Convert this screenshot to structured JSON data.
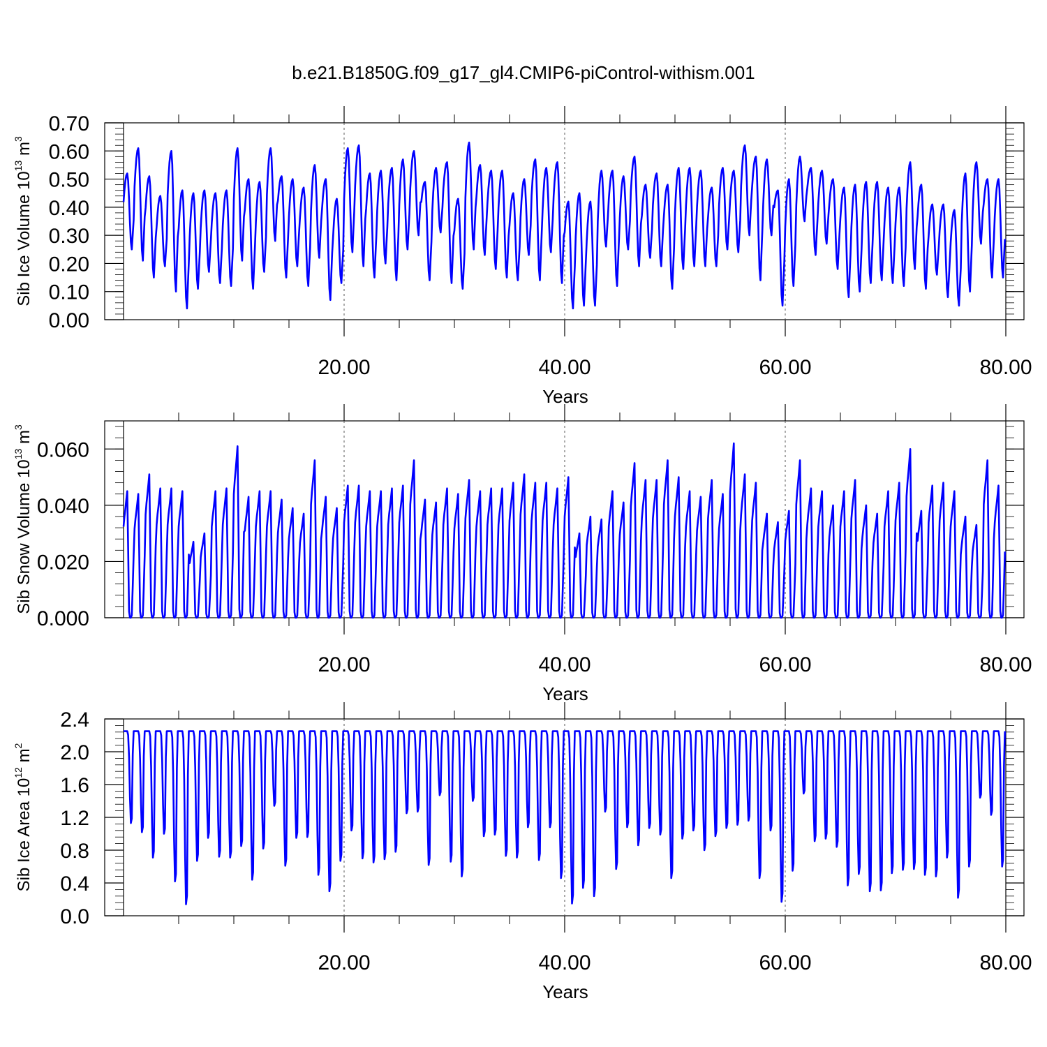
{
  "figure_title": "b.e21.B1850G.f09_g17_gl4.CMIP6-piControl-withism.001",
  "line_color": "#0000ff",
  "chart_data": [
    {
      "type": "line",
      "ylabel_text": "Sib Ice Volume 10",
      "ylabel_exp": "13",
      "ylabel_unit": " m",
      "ylabel_unit_exp": "3",
      "xlabel": "Years",
      "xlim": [
        0,
        81.5
      ],
      "ylim": [
        0,
        0.7
      ],
      "ylim_plot_top": 0.7,
      "yticks": [
        "0.00",
        "0.10",
        "0.20",
        "0.30",
        "0.40",
        "0.50",
        "0.60",
        "0.70"
      ],
      "ytick_values": [
        0,
        0.1,
        0.2,
        0.3,
        0.4,
        0.5,
        0.6,
        0.7
      ],
      "xticks": [
        "20.00",
        "40.00",
        "60.00",
        "80.00"
      ],
      "xtick_values": [
        20,
        40,
        60,
        80
      ],
      "annual_max": [
        0.52,
        0.61,
        0.51,
        0.44,
        0.6,
        0.46,
        0.45,
        0.46,
        0.45,
        0.46,
        0.61,
        0.5,
        0.49,
        0.61,
        0.51,
        0.5,
        0.47,
        0.55,
        0.5,
        0.43,
        0.61,
        0.62,
        0.52,
        0.53,
        0.54,
        0.57,
        0.6,
        0.49,
        0.54,
        0.56,
        0.43,
        0.63,
        0.55,
        0.53,
        0.53,
        0.45,
        0.5,
        0.57,
        0.54,
        0.56,
        0.42,
        0.45,
        0.42,
        0.53,
        0.53,
        0.51,
        0.58,
        0.48,
        0.52,
        0.48,
        0.54,
        0.54,
        0.53,
        0.47,
        0.54,
        0.53,
        0.62,
        0.58,
        0.57,
        0.46,
        0.5,
        0.58,
        0.54,
        0.53,
        0.5,
        0.47,
        0.48,
        0.49,
        0.49,
        0.47,
        0.47,
        0.56,
        0.48,
        0.41,
        0.41,
        0.39,
        0.52,
        0.56,
        0.5
      ],
      "annual_min": [
        0.25,
        0.21,
        0.15,
        0.19,
        0.1,
        0.04,
        0.11,
        0.17,
        0.13,
        0.12,
        0.21,
        0.11,
        0.17,
        0.28,
        0.15,
        0.19,
        0.12,
        0.22,
        0.07,
        0.13,
        0.24,
        0.19,
        0.15,
        0.2,
        0.14,
        0.25,
        0.3,
        0.14,
        0.31,
        0.13,
        0.11,
        0.25,
        0.23,
        0.18,
        0.15,
        0.14,
        0.23,
        0.14,
        0.24,
        0.13,
        0.04,
        0.05,
        0.05,
        0.26,
        0.12,
        0.25,
        0.19,
        0.22,
        0.19,
        0.11,
        0.18,
        0.19,
        0.19,
        0.19,
        0.25,
        0.24,
        0.3,
        0.14,
        0.3,
        0.05,
        0.12,
        0.35,
        0.23,
        0.27,
        0.18,
        0.08,
        0.1,
        0.13,
        0.14,
        0.13,
        0.12,
        0.18,
        0.11,
        0.16,
        0.08,
        0.05,
        0.1,
        0.27,
        0.15
      ]
    },
    {
      "type": "line",
      "ylabel_text": "Sib Snow Volume 10",
      "ylabel_exp": "13",
      "ylabel_unit": " m",
      "ylabel_unit_exp": "3",
      "xlabel": "Years",
      "xlim": [
        0,
        81.5
      ],
      "ylim": [
        0,
        0.07
      ],
      "yticks": [
        "0.000",
        "0.020",
        "0.040",
        "0.060"
      ],
      "ytick_values": [
        0,
        0.02,
        0.04,
        0.06
      ],
      "xticks": [
        "20.00",
        "40.00",
        "60.00",
        "80.00"
      ],
      "xtick_values": [
        20,
        40,
        60,
        80
      ],
      "annual_max": [
        0.045,
        0.044,
        0.051,
        0.046,
        0.046,
        0.045,
        0.027,
        0.03,
        0.045,
        0.046,
        0.061,
        0.043,
        0.045,
        0.045,
        0.042,
        0.039,
        0.037,
        0.056,
        0.043,
        0.039,
        0.047,
        0.047,
        0.045,
        0.045,
        0.046,
        0.047,
        0.056,
        0.042,
        0.041,
        0.046,
        0.044,
        0.049,
        0.045,
        0.046,
        0.046,
        0.048,
        0.051,
        0.048,
        0.048,
        0.046,
        0.05,
        0.03,
        0.036,
        0.035,
        0.045,
        0.041,
        0.055,
        0.049,
        0.049,
        0.056,
        0.05,
        0.045,
        0.043,
        0.049,
        0.044,
        0.062,
        0.051,
        0.048,
        0.037,
        0.034,
        0.038,
        0.056,
        0.046,
        0.045,
        0.04,
        0.045,
        0.049,
        0.04,
        0.037,
        0.045,
        0.048,
        0.06,
        0.038,
        0.047,
        0.048,
        0.045,
        0.036,
        0.033,
        0.056,
        0.047,
        0.04
      ]
    },
    {
      "type": "line",
      "ylabel_text": "Sib Ice Area 10",
      "ylabel_exp": "12",
      "ylabel_unit": " m",
      "ylabel_unit_exp": "2",
      "xlabel": "Years",
      "xlim": [
        0,
        81.5
      ],
      "ylim": [
        0,
        2.4
      ],
      "yticks": [
        "0.0",
        "0.4",
        "0.8",
        "1.2",
        "1.6",
        "2.0",
        "2.4"
      ],
      "ytick_values": [
        0,
        0.4,
        0.8,
        1.2,
        1.6,
        2.0,
        2.4
      ],
      "xticks": [
        "20.00",
        "40.00",
        "60.00",
        "80.00"
      ],
      "xtick_values": [
        20,
        40,
        60,
        80
      ],
      "annual_max": [
        2.25
      ],
      "annual_min": [
        1.13,
        1.02,
        0.71,
        1.0,
        0.42,
        0.14,
        0.67,
        0.95,
        0.72,
        0.71,
        0.85,
        0.44,
        0.82,
        1.34,
        0.61,
        0.95,
        0.96,
        0.5,
        0.3,
        0.67,
        1.04,
        0.7,
        0.65,
        0.69,
        0.78,
        1.25,
        1.27,
        0.62,
        1.47,
        0.66,
        0.48,
        1.4,
        0.97,
        0.99,
        0.73,
        0.71,
        1.08,
        0.68,
        1.08,
        0.46,
        0.15,
        0.34,
        0.24,
        1.27,
        0.57,
        1.08,
        0.86,
        1.07,
        0.99,
        0.46,
        0.94,
        1.04,
        0.8,
        0.97,
        1.07,
        1.11,
        1.16,
        0.46,
        1.04,
        0.17,
        0.55,
        1.49,
        0.91,
        0.94,
        0.84,
        0.37,
        0.51,
        0.3,
        0.31,
        0.52,
        0.56,
        0.57,
        0.5,
        0.48,
        0.71,
        0.22,
        0.6,
        1.44,
        1.23,
        0.6
      ]
    }
  ]
}
